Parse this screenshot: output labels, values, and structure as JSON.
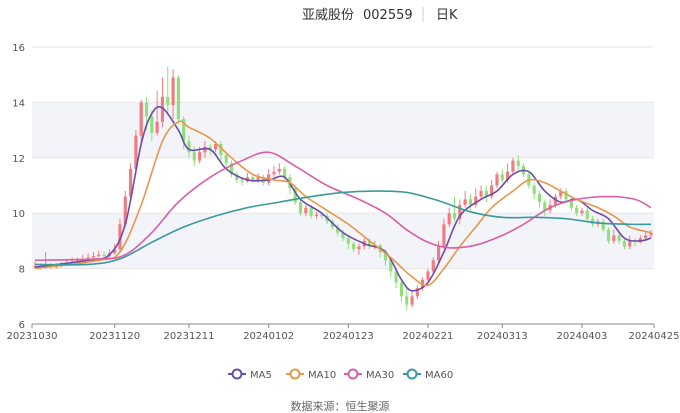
{
  "header": {
    "stock_name": "亚威股份",
    "stock_code": "002559",
    "period": "日K"
  },
  "source": "数据来源：恒生聚源",
  "colors": {
    "up": "#f07c82",
    "down": "#8fe07a",
    "ma5": "#6b4bab",
    "ma10": "#e8964a",
    "ma30": "#d95fa6",
    "ma60": "#3a9a9e",
    "band": "#f2f4f9",
    "grid": "#e6e6e6",
    "axis": "#888888",
    "text": "#555555"
  },
  "chart_data": {
    "type": "candlestick",
    "ylim": [
      6,
      16
    ],
    "yticks": [
      6,
      8,
      10,
      12,
      14,
      16
    ],
    "n": 117,
    "xticks": [
      {
        "i": 0,
        "label": "20231030"
      },
      {
        "i": 15,
        "label": "20231120"
      },
      {
        "i": 29,
        "label": "20231211"
      },
      {
        "i": 44,
        "label": "20240102"
      },
      {
        "i": 59,
        "label": "20240123"
      },
      {
        "i": 74,
        "label": "20240221"
      },
      {
        "i": 88,
        "label": "20240313"
      },
      {
        "i": 103,
        "label": "20240403"
      },
      {
        "i": 116,
        "label": "20240425"
      }
    ],
    "candles": [
      [
        8.05,
        8.1,
        8.25,
        8.0
      ],
      [
        8.1,
        8.05,
        8.2,
        7.95
      ],
      [
        8.05,
        8.1,
        8.6,
        8.0
      ],
      [
        8.1,
        8.05,
        8.2,
        7.95
      ],
      [
        8.05,
        8.1,
        8.2,
        8.0
      ],
      [
        8.1,
        8.15,
        8.25,
        8.05
      ],
      [
        8.15,
        8.2,
        8.35,
        8.1
      ],
      [
        8.2,
        8.25,
        8.4,
        8.15
      ],
      [
        8.25,
        8.3,
        8.4,
        8.2
      ],
      [
        8.3,
        8.35,
        8.5,
        8.25
      ],
      [
        8.35,
        8.4,
        8.55,
        8.3
      ],
      [
        8.4,
        8.45,
        8.6,
        8.35
      ],
      [
        8.45,
        8.5,
        8.65,
        8.4
      ],
      [
        8.5,
        8.45,
        8.6,
        8.35
      ],
      [
        8.45,
        8.55,
        8.7,
        8.4
      ],
      [
        8.55,
        8.7,
        8.9,
        8.5
      ],
      [
        8.7,
        9.6,
        9.8,
        8.65
      ],
      [
        9.6,
        10.6,
        10.8,
        9.5
      ],
      [
        10.6,
        11.6,
        11.8,
        10.4
      ],
      [
        11.6,
        12.8,
        13.0,
        11.4
      ],
      [
        12.8,
        14.0,
        14.1,
        12.5
      ],
      [
        14.0,
        13.5,
        14.2,
        13.0
      ],
      [
        13.5,
        12.9,
        13.7,
        12.6
      ],
      [
        12.9,
        13.3,
        14.4,
        12.8
      ],
      [
        13.3,
        14.2,
        14.9,
        13.1
      ],
      [
        14.2,
        13.9,
        15.3,
        13.6
      ],
      [
        13.9,
        14.9,
        15.2,
        13.4
      ],
      [
        14.9,
        13.4,
        15.0,
        13.2
      ],
      [
        13.4,
        12.6,
        13.5,
        12.3
      ],
      [
        12.6,
        12.2,
        12.8,
        12.0
      ],
      [
        12.2,
        11.9,
        12.4,
        11.7
      ],
      [
        11.9,
        12.2,
        12.4,
        11.8
      ],
      [
        12.2,
        12.4,
        12.6,
        12.0
      ],
      [
        12.4,
        12.3,
        12.5,
        12.1
      ],
      [
        12.3,
        12.5,
        12.6,
        12.2
      ],
      [
        12.5,
        12.1,
        12.6,
        11.9
      ],
      [
        12.1,
        11.8,
        12.2,
        11.6
      ],
      [
        11.8,
        11.4,
        11.9,
        11.3
      ],
      [
        11.4,
        11.2,
        11.5,
        11.1
      ],
      [
        11.2,
        11.15,
        11.3,
        11.0
      ],
      [
        11.15,
        11.3,
        11.45,
        11.1
      ],
      [
        11.3,
        11.2,
        11.4,
        11.1
      ],
      [
        11.2,
        11.3,
        11.45,
        11.1
      ],
      [
        11.3,
        11.1,
        11.4,
        11.0
      ],
      [
        11.1,
        11.4,
        11.6,
        11.0
      ],
      [
        11.4,
        11.5,
        11.7,
        11.3
      ],
      [
        11.5,
        11.6,
        11.8,
        11.4
      ],
      [
        11.6,
        11.3,
        11.7,
        11.2
      ],
      [
        11.3,
        10.9,
        11.4,
        10.7
      ],
      [
        10.9,
        10.4,
        11.0,
        10.3
      ],
      [
        10.4,
        10.0,
        10.5,
        9.9
      ],
      [
        10.0,
        10.2,
        10.3,
        9.9
      ],
      [
        10.2,
        9.9,
        10.3,
        9.8
      ],
      [
        9.9,
        9.95,
        10.05,
        9.8
      ],
      [
        9.95,
        9.9,
        10.0,
        9.8
      ],
      [
        9.9,
        9.7,
        10.0,
        9.6
      ],
      [
        9.7,
        9.5,
        9.8,
        9.4
      ],
      [
        9.5,
        9.3,
        9.6,
        9.2
      ],
      [
        9.3,
        9.1,
        9.4,
        9.0
      ],
      [
        9.1,
        8.9,
        9.2,
        8.7
      ],
      [
        8.9,
        8.7,
        9.0,
        8.6
      ],
      [
        8.7,
        8.8,
        8.9,
        8.5
      ],
      [
        8.8,
        9.0,
        9.1,
        8.7
      ],
      [
        9.0,
        8.8,
        9.1,
        8.7
      ],
      [
        8.8,
        8.85,
        9.0,
        8.7
      ],
      [
        8.85,
        8.6,
        8.9,
        8.4
      ],
      [
        8.6,
        8.3,
        8.7,
        8.1
      ],
      [
        8.3,
        7.9,
        8.4,
        7.7
      ],
      [
        7.9,
        7.5,
        8.0,
        7.3
      ],
      [
        7.5,
        7.0,
        7.6,
        6.8
      ],
      [
        7.0,
        6.7,
        7.3,
        6.5
      ],
      [
        6.7,
        7.0,
        7.2,
        6.6
      ],
      [
        7.0,
        7.3,
        7.4,
        6.9
      ],
      [
        7.3,
        7.6,
        7.7,
        7.2
      ],
      [
        7.6,
        7.9,
        8.0,
        7.5
      ],
      [
        7.9,
        8.3,
        8.4,
        7.8
      ],
      [
        8.3,
        8.8,
        9.0,
        8.2
      ],
      [
        8.8,
        9.6,
        9.8,
        8.7
      ],
      [
        9.6,
        10.0,
        10.2,
        9.5
      ],
      [
        10.0,
        9.8,
        10.6,
        9.7
      ],
      [
        9.8,
        10.3,
        10.5,
        9.6
      ],
      [
        10.3,
        10.5,
        10.8,
        10.2
      ],
      [
        10.5,
        10.3,
        10.7,
        10.1
      ],
      [
        10.3,
        10.6,
        10.9,
        10.2
      ],
      [
        10.6,
        10.8,
        11.0,
        10.5
      ],
      [
        10.8,
        10.6,
        11.0,
        10.4
      ],
      [
        10.6,
        11.0,
        11.2,
        10.5
      ],
      [
        11.0,
        11.4,
        11.5,
        10.9
      ],
      [
        11.4,
        11.2,
        11.6,
        11.1
      ],
      [
        11.2,
        11.5,
        11.8,
        11.1
      ],
      [
        11.5,
        11.9,
        12.0,
        11.4
      ],
      [
        11.9,
        11.7,
        12.1,
        11.5
      ],
      [
        11.7,
        11.4,
        11.8,
        11.3
      ],
      [
        11.4,
        11.0,
        11.5,
        10.9
      ],
      [
        11.0,
        10.7,
        11.1,
        10.5
      ],
      [
        10.7,
        10.4,
        10.8,
        10.2
      ],
      [
        10.4,
        10.1,
        10.5,
        9.9
      ],
      [
        10.1,
        10.3,
        10.5,
        10.0
      ],
      [
        10.3,
        10.6,
        10.7,
        10.2
      ],
      [
        10.6,
        10.8,
        10.9,
        10.5
      ],
      [
        10.8,
        10.5,
        10.9,
        10.4
      ],
      [
        10.5,
        10.2,
        10.6,
        10.1
      ],
      [
        10.2,
        10.0,
        10.3,
        9.9
      ],
      [
        10.0,
        10.1,
        10.2,
        9.9
      ],
      [
        10.1,
        9.8,
        10.2,
        9.7
      ],
      [
        9.8,
        9.6,
        9.9,
        9.5
      ],
      [
        9.6,
        9.7,
        9.8,
        9.5
      ],
      [
        9.7,
        9.4,
        9.8,
        9.3
      ],
      [
        9.4,
        9.0,
        9.5,
        8.9
      ],
      [
        9.0,
        9.2,
        9.4,
        8.9
      ],
      [
        9.2,
        9.0,
        9.3,
        8.9
      ],
      [
        9.0,
        8.8,
        9.1,
        8.7
      ],
      [
        8.8,
        9.0,
        9.2,
        8.7
      ],
      [
        9.0,
        8.95,
        9.1,
        8.8
      ],
      [
        8.95,
        9.1,
        9.2,
        8.9
      ],
      [
        9.1,
        9.2,
        9.35,
        9.05
      ],
      [
        9.2,
        9.3,
        9.4,
        9.1
      ]
    ],
    "series": [
      {
        "name": "MA5",
        "color_key": "ma5",
        "points": [
          [
            0,
            8.05
          ],
          [
            10,
            8.3
          ],
          [
            14,
            8.5
          ],
          [
            17,
            9.6
          ],
          [
            20,
            12.5
          ],
          [
            22,
            13.6
          ],
          [
            24,
            13.8
          ],
          [
            27,
            13.0
          ],
          [
            29,
            12.3
          ],
          [
            33,
            12.3
          ],
          [
            36,
            11.6
          ],
          [
            40,
            11.2
          ],
          [
            44,
            11.2
          ],
          [
            47,
            11.3
          ],
          [
            50,
            10.5
          ],
          [
            54,
            10.0
          ],
          [
            58,
            9.3
          ],
          [
            62,
            8.9
          ],
          [
            66,
            8.6
          ],
          [
            69,
            7.6
          ],
          [
            71,
            7.2
          ],
          [
            74,
            7.5
          ],
          [
            77,
            8.6
          ],
          [
            80,
            9.9
          ],
          [
            84,
            10.5
          ],
          [
            87,
            10.8
          ],
          [
            90,
            11.4
          ],
          [
            93,
            11.5
          ],
          [
            96,
            10.8
          ],
          [
            99,
            10.4
          ],
          [
            102,
            10.5
          ],
          [
            105,
            10.1
          ],
          [
            108,
            9.8
          ],
          [
            111,
            9.1
          ],
          [
            114,
            9.0
          ],
          [
            116,
            9.1
          ]
        ]
      },
      {
        "name": "MA10",
        "color_key": "ma10",
        "points": [
          [
            0,
            8.0
          ],
          [
            12,
            8.3
          ],
          [
            16,
            8.6
          ],
          [
            20,
            10.3
          ],
          [
            24,
            12.6
          ],
          [
            27,
            13.3
          ],
          [
            29,
            13.1
          ],
          [
            33,
            12.7
          ],
          [
            37,
            12.0
          ],
          [
            41,
            11.4
          ],
          [
            45,
            11.2
          ],
          [
            48,
            11.1
          ],
          [
            51,
            10.6
          ],
          [
            55,
            10.1
          ],
          [
            59,
            9.6
          ],
          [
            63,
            9.0
          ],
          [
            67,
            8.4
          ],
          [
            71,
            7.7
          ],
          [
            74,
            7.4
          ],
          [
            77,
            8.0
          ],
          [
            80,
            8.8
          ],
          [
            83,
            9.5
          ],
          [
            86,
            10.2
          ],
          [
            90,
            10.8
          ],
          [
            93,
            11.2
          ],
          [
            96,
            11.1
          ],
          [
            99,
            10.8
          ],
          [
            102,
            10.5
          ],
          [
            106,
            10.2
          ],
          [
            109,
            9.9
          ],
          [
            112,
            9.5
          ],
          [
            116,
            9.3
          ]
        ]
      },
      {
        "name": "MA30",
        "color_key": "ma30",
        "points": [
          [
            0,
            8.3
          ],
          [
            12,
            8.35
          ],
          [
            17,
            8.5
          ],
          [
            22,
            9.3
          ],
          [
            27,
            10.4
          ],
          [
            33,
            11.3
          ],
          [
            39,
            11.9
          ],
          [
            44,
            12.2
          ],
          [
            49,
            11.7
          ],
          [
            55,
            11.0
          ],
          [
            61,
            10.5
          ],
          [
            66,
            10.0
          ],
          [
            70,
            9.4
          ],
          [
            74,
            8.95
          ],
          [
            78,
            8.75
          ],
          [
            83,
            8.85
          ],
          [
            88,
            9.2
          ],
          [
            92,
            9.6
          ],
          [
            97,
            10.2
          ],
          [
            102,
            10.5
          ],
          [
            108,
            10.6
          ],
          [
            113,
            10.5
          ],
          [
            116,
            10.2
          ]
        ]
      },
      {
        "name": "MA60",
        "color_key": "ma60",
        "points": [
          [
            0,
            8.15
          ],
          [
            10,
            8.15
          ],
          [
            16,
            8.35
          ],
          [
            22,
            8.95
          ],
          [
            28,
            9.5
          ],
          [
            34,
            9.9
          ],
          [
            40,
            10.2
          ],
          [
            46,
            10.4
          ],
          [
            52,
            10.6
          ],
          [
            58,
            10.75
          ],
          [
            64,
            10.8
          ],
          [
            70,
            10.75
          ],
          [
            76,
            10.45
          ],
          [
            82,
            10.05
          ],
          [
            88,
            9.85
          ],
          [
            94,
            9.85
          ],
          [
            100,
            9.8
          ],
          [
            106,
            9.65
          ],
          [
            112,
            9.6
          ],
          [
            116,
            9.6
          ]
        ]
      }
    ]
  }
}
